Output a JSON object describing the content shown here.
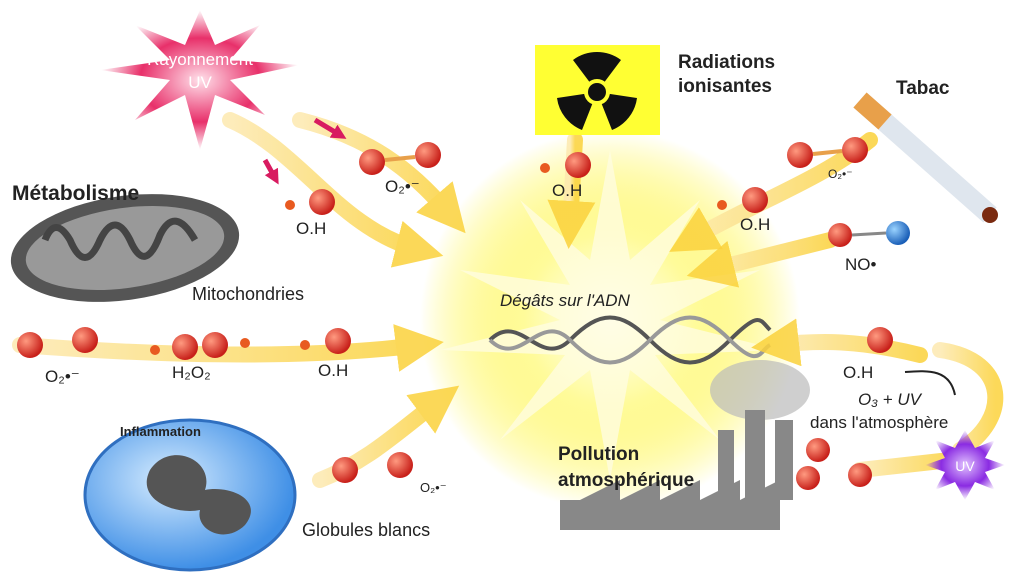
{
  "center": {
    "label": "Dégâts sur l'ADN"
  },
  "uv": {
    "lines": [
      "Rayonnement",
      "UV"
    ]
  },
  "radiation": {
    "lines": [
      "Radiations",
      "ionisantes"
    ]
  },
  "tobacco": {
    "label": "Tabac"
  },
  "metabolism": {
    "title": "Métabolisme",
    "subtitle": "Mitochondries"
  },
  "inflammation": {
    "title": "Inflammation",
    "subtitle": "Globules blancs"
  },
  "pollution": {
    "lines": [
      "Pollution",
      "atmosphérique"
    ]
  },
  "atmosphere": {
    "lines": [
      "O₃ + UV",
      "dans l'atmosphère"
    ],
    "uv": "UV"
  },
  "molecules": [
    {
      "label": "O₂•⁻"
    },
    {
      "label": "O.H"
    },
    {
      "label": "O.H"
    },
    {
      "label": "O₂•⁻"
    },
    {
      "label": "O.H"
    },
    {
      "label": "NO•"
    },
    {
      "label": "O₂•⁻"
    },
    {
      "label": "H₂O₂"
    },
    {
      "label": "O.H"
    },
    {
      "label": "O.H"
    },
    {
      "label": "O₂•⁻"
    }
  ]
}
